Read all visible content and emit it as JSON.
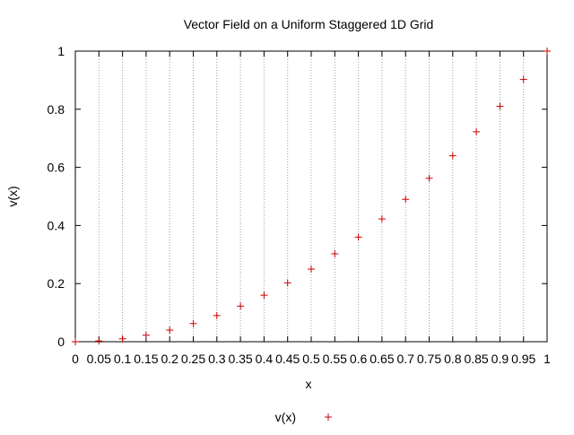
{
  "chart_data": {
    "type": "scatter",
    "title": "Vector Field on a Uniform Staggered 1D Grid",
    "xlabel": "x",
    "ylabel": "v(x)",
    "xlim": [
      0,
      1
    ],
    "ylim": [
      0,
      1
    ],
    "grid": "x-only",
    "legend_position": "bottom-center",
    "x_ticks": [
      "0",
      "0.05",
      "0.1",
      "0.15",
      "0.2",
      "0.25",
      "0.3",
      "0.35",
      "0.4",
      "0.45",
      "0.5",
      "0.55",
      "0.6",
      "0.65",
      "0.7",
      "0.75",
      "0.8",
      "0.85",
      "0.9",
      "0.95",
      "1"
    ],
    "y_ticks": [
      "0",
      "0.2",
      "0.4",
      "0.6",
      "0.8",
      "1"
    ],
    "series": [
      {
        "name": "v(x)",
        "marker": "plus",
        "color": "#cc0000",
        "x": [
          0,
          0.05,
          0.1,
          0.15,
          0.2,
          0.25,
          0.3,
          0.35,
          0.4,
          0.45,
          0.5,
          0.55,
          0.6,
          0.65,
          0.7,
          0.75,
          0.8,
          0.85,
          0.9,
          0.95,
          1
        ],
        "y": [
          0,
          0.0025,
          0.01,
          0.0225,
          0.04,
          0.0625,
          0.09,
          0.1225,
          0.16,
          0.2025,
          0.25,
          0.3025,
          0.36,
          0.4225,
          0.49,
          0.5625,
          0.64,
          0.7225,
          0.81,
          0.9025,
          1
        ]
      }
    ]
  }
}
